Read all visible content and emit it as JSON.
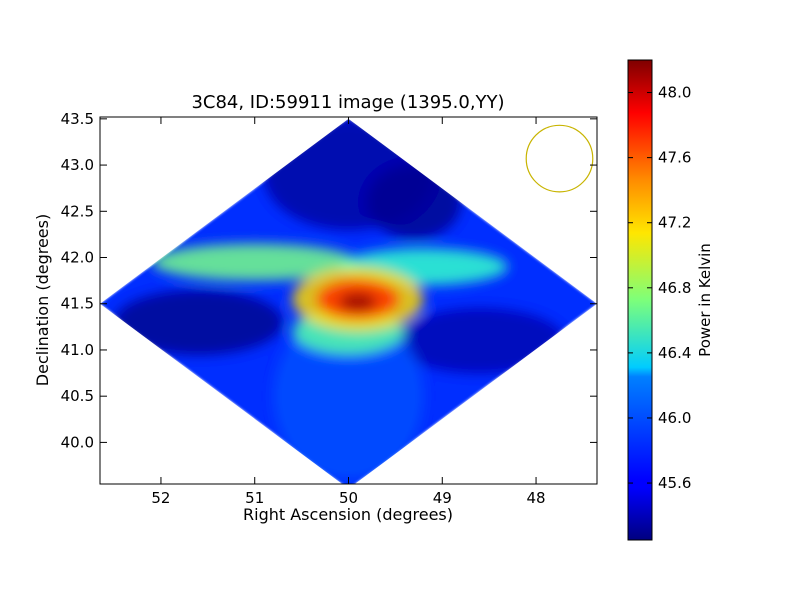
{
  "chart_data": {
    "type": "heatmap",
    "title": "3C84, ID:59911 image (1395.0,YY)",
    "xlabel": "Right Ascension (degrees)",
    "ylabel": "Declination (degrees)",
    "xlim": [
      52.65,
      47.35
    ],
    "ylim": [
      39.55,
      43.52
    ],
    "x_ticks": [
      52,
      51,
      50,
      49,
      48
    ],
    "x_tick_labels": [
      "52",
      "51",
      "50",
      "49",
      "48"
    ],
    "y_ticks": [
      40.0,
      40.5,
      41.0,
      41.5,
      42.0,
      42.5,
      43.0,
      43.5
    ],
    "y_tick_labels": [
      "40.0",
      "40.5",
      "41.0",
      "41.5",
      "42.0",
      "42.5",
      "43.0",
      "43.5"
    ],
    "map_center": {
      "ra": 50.0,
      "dec": 41.5
    },
    "map_half_extent": {
      "ra": 2.65,
      "dec": 2.0
    },
    "beam_circle": {
      "ra": 47.75,
      "dec": 43.07,
      "radius_deg": 0.36
    },
    "colorbar": {
      "label": "Power in Kelvin",
      "range": [
        45.25,
        48.2
      ],
      "ticks": [
        45.6,
        46.0,
        46.4,
        46.8,
        47.2,
        47.6,
        48.0
      ],
      "tick_labels": [
        "45.6",
        "46.0",
        "46.4",
        "46.8",
        "47.2",
        "47.6",
        "48.0"
      ],
      "colormap": "jet"
    },
    "grid": false,
    "colors": {
      "beam": "#c8b400",
      "background": "#ffffff"
    }
  }
}
